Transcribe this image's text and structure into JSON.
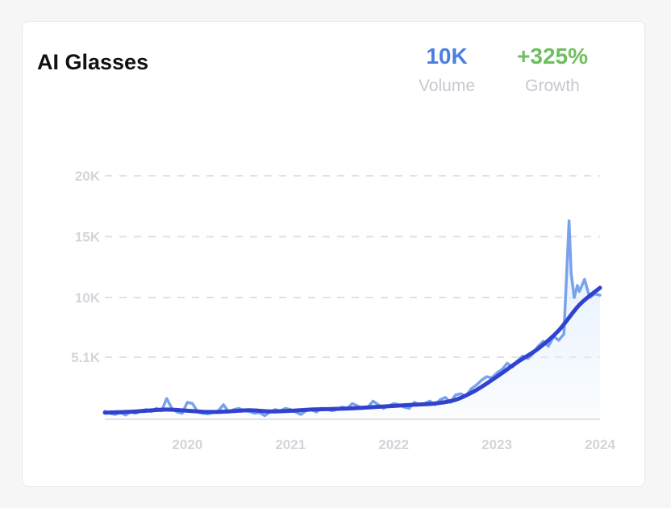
{
  "card": {
    "title": "AI Glasses",
    "volume": {
      "value": "10K",
      "label": "Volume"
    },
    "growth": {
      "value": "+325%",
      "label": "Growth"
    }
  },
  "colors": {
    "volume_value": "#4a7fe0",
    "growth_value": "#6cbf5c",
    "raw_line": "#78a2eb",
    "trend_line": "#3142cf",
    "area_fill": "#e3effc",
    "gridline": "#dfe1e6"
  },
  "chart_data": {
    "type": "line",
    "title": "",
    "xlabel": "",
    "ylabel": "",
    "x_ticks": [
      {
        "label": "2020",
        "x": 2020
      },
      {
        "label": "2021",
        "x": 2021
      },
      {
        "label": "2022",
        "x": 2022
      },
      {
        "label": "2023",
        "x": 2023
      },
      {
        "label": "2024",
        "x": 2024
      }
    ],
    "y_ticks": [
      {
        "label": "5.1K",
        "y": 5100
      },
      {
        "label": "10K",
        "y": 10000
      },
      {
        "label": "15K",
        "y": 15000
      },
      {
        "label": "20K",
        "y": 20000
      }
    ],
    "xlim": [
      2019.2,
      2024.0
    ],
    "ylim": [
      0,
      20000
    ],
    "grid": true,
    "series": [
      {
        "role": "raw",
        "x": [
          2019.2,
          2019.25,
          2019.3,
          2019.35,
          2019.4,
          2019.45,
          2019.5,
          2019.55,
          2019.6,
          2019.65,
          2019.7,
          2019.75,
          2019.8,
          2019.85,
          2019.9,
          2019.95,
          2020.0,
          2020.05,
          2020.1,
          2020.15,
          2020.2,
          2020.25,
          2020.3,
          2020.35,
          2020.4,
          2020.45,
          2020.5,
          2020.55,
          2020.6,
          2020.65,
          2020.7,
          2020.75,
          2020.8,
          2020.85,
          2020.9,
          2020.95,
          2021.0,
          2021.05,
          2021.1,
          2021.15,
          2021.2,
          2021.25,
          2021.3,
          2021.35,
          2021.4,
          2021.45,
          2021.5,
          2021.55,
          2021.6,
          2021.65,
          2021.7,
          2021.75,
          2021.8,
          2021.85,
          2021.9,
          2021.95,
          2022.0,
          2022.05,
          2022.1,
          2022.15,
          2022.2,
          2022.25,
          2022.3,
          2022.35,
          2022.4,
          2022.45,
          2022.5,
          2022.55,
          2022.6,
          2022.65,
          2022.7,
          2022.75,
          2022.8,
          2022.85,
          2022.9,
          2022.95,
          2023.0,
          2023.05,
          2023.1,
          2023.15,
          2023.2,
          2023.25,
          2023.3,
          2023.35,
          2023.4,
          2023.45,
          2023.5,
          2023.55,
          2023.6,
          2023.65,
          2023.7,
          2023.72,
          2023.75,
          2023.78,
          2023.8,
          2023.85,
          2023.9,
          2023.95,
          2024.0
        ],
        "y": [
          650,
          500,
          400,
          550,
          350,
          600,
          500,
          700,
          800,
          650,
          900,
          700,
          1700,
          900,
          600,
          500,
          1400,
          1300,
          600,
          500,
          450,
          550,
          700,
          1200,
          600,
          800,
          900,
          700,
          650,
          500,
          550,
          300,
          600,
          800,
          700,
          900,
          800,
          600,
          400,
          700,
          800,
          600,
          900,
          850,
          700,
          800,
          1000,
          900,
          1300,
          1100,
          900,
          1000,
          1500,
          1200,
          900,
          1100,
          1300,
          1200,
          1000,
          900,
          1400,
          1200,
          1300,
          1500,
          1200,
          1600,
          1800,
          1400,
          2000,
          2100,
          1900,
          2500,
          2800,
          3200,
          3500,
          3400,
          3800,
          4100,
          4600,
          4300,
          4800,
          5200,
          5000,
          5400,
          6000,
          6400,
          6000,
          6800,
          6500,
          7000,
          16300,
          12000,
          10000,
          11000,
          10500,
          11500,
          10000,
          10300,
          10200
        ]
      },
      {
        "role": "trend",
        "x": [
          2019.2,
          2019.4,
          2019.6,
          2019.8,
          2020.0,
          2020.2,
          2020.4,
          2020.6,
          2020.8,
          2021.0,
          2021.2,
          2021.4,
          2021.6,
          2021.8,
          2022.0,
          2022.2,
          2022.4,
          2022.6,
          2022.8,
          2023.0,
          2023.2,
          2023.4,
          2023.6,
          2023.8,
          2024.0
        ],
        "y": [
          550,
          600,
          700,
          800,
          700,
          600,
          650,
          750,
          650,
          700,
          800,
          850,
          900,
          1000,
          1100,
          1200,
          1300,
          1600,
          2400,
          3500,
          4700,
          5800,
          7300,
          9400,
          10800
        ]
      }
    ]
  }
}
